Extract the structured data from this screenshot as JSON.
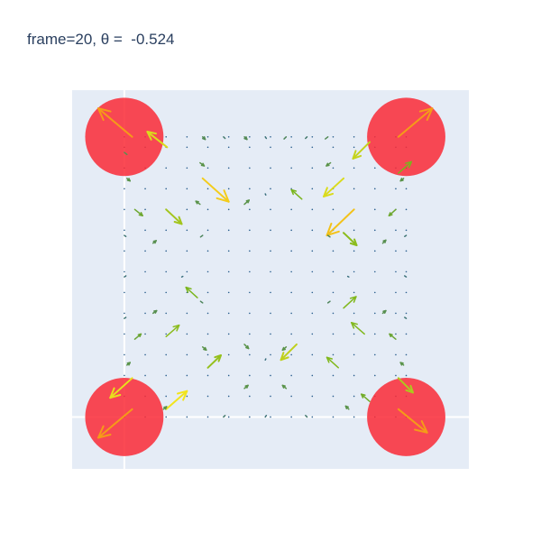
{
  "chart_data": {
    "type": "quiver",
    "title": "frame=20, θ =  -0.524",
    "frame": 20,
    "theta": -0.524,
    "xlim": [
      -1,
      6.6
    ],
    "ylim": [
      -1,
      6.3
    ],
    "grid": true,
    "gridlines": {
      "x": [
        0
      ],
      "y": [
        0
      ]
    },
    "colors": {
      "plot_bg": "#e5ecf6",
      "gridline": "#ffffff",
      "markers": "#fa2a36",
      "scale_low": "#2b5f8e",
      "scale_mid": "#7ab51d",
      "scale_high": "#f2e41c",
      "scale_top": "#f59b18"
    },
    "markers": [
      {
        "x": 0,
        "y": 5.4
      },
      {
        "x": 5.4,
        "y": 5.4
      },
      {
        "x": 0,
        "y": 0
      },
      {
        "x": 5.4,
        "y": 0
      }
    ],
    "vectors": [
      {
        "x": 0.15,
        "y": 5.4,
        "u": -0.65,
        "v": 0.55,
        "mag": 1.0
      },
      {
        "x": 5.25,
        "y": 5.4,
        "u": 0.65,
        "v": 0.55,
        "mag": 1.0
      },
      {
        "x": 0.15,
        "y": 0.15,
        "u": -0.65,
        "v": -0.55,
        "mag": 1.0
      },
      {
        "x": 5.25,
        "y": 0.15,
        "u": 0.55,
        "v": -0.45,
        "mag": 1.0
      },
      {
        "x": 0.82,
        "y": 5.2,
        "u": -0.38,
        "v": 0.3,
        "mag": 0.78
      },
      {
        "x": 4.7,
        "y": 5.3,
        "u": -0.32,
        "v": -0.32,
        "mag": 0.72
      },
      {
        "x": 0.15,
        "y": 0.75,
        "u": -0.42,
        "v": -0.38,
        "mag": 0.82
      },
      {
        "x": 5.25,
        "y": 0.75,
        "u": 0.28,
        "v": -0.28,
        "mag": 0.65
      },
      {
        "x": 5.25,
        "y": 4.7,
        "u": 0.25,
        "v": 0.22,
        "mag": 0.5
      },
      {
        "x": 0.8,
        "y": 0.15,
        "u": 0.4,
        "v": 0.35,
        "mag": 0.85
      },
      {
        "x": 1.5,
        "y": 4.6,
        "u": 0.5,
        "v": -0.45,
        "mag": 0.9
      },
      {
        "x": 4.2,
        "y": 4.6,
        "u": -0.38,
        "v": -0.35,
        "mag": 0.78
      },
      {
        "x": 4.4,
        "y": 4.0,
        "u": -0.52,
        "v": -0.5,
        "mag": 0.92
      },
      {
        "x": 0.8,
        "y": 4.0,
        "u": 0.3,
        "v": -0.28,
        "mag": 0.62
      },
      {
        "x": 4.2,
        "y": 3.55,
        "u": 0.25,
        "v": -0.24,
        "mag": 0.55
      },
      {
        "x": 3.4,
        "y": 4.2,
        "u": -0.2,
        "v": 0.18,
        "mag": 0.5
      },
      {
        "x": 1.6,
        "y": 0.95,
        "u": 0.25,
        "v": 0.24,
        "mag": 0.58
      },
      {
        "x": 1.4,
        "y": 2.3,
        "u": -0.22,
        "v": 0.2,
        "mag": 0.5
      },
      {
        "x": 0.8,
        "y": 1.55,
        "u": 0.25,
        "v": 0.22,
        "mag": 0.55
      },
      {
        "x": 4.2,
        "y": 2.1,
        "u": 0.24,
        "v": 0.22,
        "mag": 0.52
      },
      {
        "x": 4.6,
        "y": 1.6,
        "u": -0.25,
        "v": 0.22,
        "mag": 0.52
      },
      {
        "x": 3.3,
        "y": 1.4,
        "u": -0.3,
        "v": -0.3,
        "mag": 0.7
      },
      {
        "x": 4.1,
        "y": 0.95,
        "u": -0.22,
        "v": 0.2,
        "mag": 0.52
      },
      {
        "x": 4.7,
        "y": 0.3,
        "u": -0.16,
        "v": 0.14,
        "mag": 0.45
      },
      {
        "x": 0.2,
        "y": 4.0,
        "u": 0.15,
        "v": -0.12,
        "mag": 0.42
      },
      {
        "x": 5.2,
        "y": 4.0,
        "u": -0.13,
        "v": -0.12,
        "mag": 0.42
      },
      {
        "x": 0.2,
        "y": 1.5,
        "u": 0.12,
        "v": 0.1,
        "mag": 0.4
      },
      {
        "x": 5.2,
        "y": 1.5,
        "u": -0.12,
        "v": 0.1,
        "mag": 0.4
      },
      {
        "x": 1.45,
        "y": 4.9,
        "u": 0.08,
        "v": -0.06,
        "mag": 0.3
      },
      {
        "x": 3.95,
        "y": 4.9,
        "u": -0.08,
        "v": -0.06,
        "mag": 0.3
      },
      {
        "x": 2.3,
        "y": 4.1,
        "u": 0.09,
        "v": 0.08,
        "mag": 0.3
      },
      {
        "x": 1.45,
        "y": 4.1,
        "u": -0.08,
        "v": 0.06,
        "mag": 0.3
      },
      {
        "x": 4.95,
        "y": 3.35,
        "u": 0.06,
        "v": 0.06,
        "mag": 0.28
      },
      {
        "x": 0.55,
        "y": 3.35,
        "u": 0.06,
        "v": 0.05,
        "mag": 0.28
      },
      {
        "x": 4.95,
        "y": 2.0,
        "u": 0.06,
        "v": 0.05,
        "mag": 0.28
      },
      {
        "x": 0.55,
        "y": 2.0,
        "u": 0.07,
        "v": 0.05,
        "mag": 0.28
      },
      {
        "x": 1.5,
        "y": 1.35,
        "u": 0.07,
        "v": -0.06,
        "mag": 0.3
      },
      {
        "x": 2.3,
        "y": 1.4,
        "u": 0.08,
        "v": -0.08,
        "mag": 0.3
      },
      {
        "x": 3.1,
        "y": 1.35,
        "u": -0.07,
        "v": -0.06,
        "mag": 0.3
      },
      {
        "x": 2.3,
        "y": 0.55,
        "u": 0.07,
        "v": 0.06,
        "mag": 0.3
      },
      {
        "x": 3.1,
        "y": 0.55,
        "u": -0.07,
        "v": 0.06,
        "mag": 0.3
      },
      {
        "x": 0.75,
        "y": 0.15,
        "u": 0.06,
        "v": 0.05,
        "mag": 0.3
      },
      {
        "x": 4.3,
        "y": 0.15,
        "u": -0.06,
        "v": 0.06,
        "mag": 0.3
      },
      {
        "x": 2.3,
        "y": 5.4,
        "u": 0.05,
        "v": -0.05,
        "mag": 0.25
      },
      {
        "x": 3.1,
        "y": 5.4,
        "u": -0.04,
        "v": -0.04,
        "mag": 0.22
      },
      {
        "x": 1.5,
        "y": 5.4,
        "u": 0.05,
        "v": -0.05,
        "mag": 0.25
      },
      {
        "x": 3.9,
        "y": 5.4,
        "u": -0.05,
        "v": -0.04,
        "mag": 0.25
      },
      {
        "x": 1.5,
        "y": 3.5,
        "u": -0.04,
        "v": -0.03,
        "mag": 0.22
      },
      {
        "x": 3.9,
        "y": 3.5,
        "u": 0.04,
        "v": -0.03,
        "mag": 0.22
      },
      {
        "x": 1.5,
        "y": 2.2,
        "u": -0.04,
        "v": 0.03,
        "mag": 0.22
      },
      {
        "x": 3.9,
        "y": 2.2,
        "u": 0.04,
        "v": 0.03,
        "mag": 0.22
      },
      {
        "x": 0.05,
        "y": 4.6,
        "u": 0.06,
        "v": -0.05,
        "mag": 0.3
      },
      {
        "x": 5.35,
        "y": 4.6,
        "u": -0.06,
        "v": -0.05,
        "mag": 0.3
      },
      {
        "x": 0.05,
        "y": 1.0,
        "u": 0.06,
        "v": 0.05,
        "mag": 0.3
      },
      {
        "x": 5.35,
        "y": 1.0,
        "u": -0.06,
        "v": 0.05,
        "mag": 0.3
      },
      {
        "x": 0.0,
        "y": 5.1,
        "u": 0.05,
        "v": -0.04,
        "mag": 0.28
      },
      {
        "x": 1.9,
        "y": 5.4,
        "u": 0.03,
        "v": -0.03,
        "mag": 0.15
      },
      {
        "x": 2.7,
        "y": 5.4,
        "u": 0.02,
        "v": -0.03,
        "mag": 0.1
      },
      {
        "x": 3.5,
        "y": 5.4,
        "u": -0.03,
        "v": -0.03,
        "mag": 0.15
      },
      {
        "x": 1.9,
        "y": 0.0,
        "u": 0.03,
        "v": 0.03,
        "mag": 0.15
      },
      {
        "x": 2.7,
        "y": 0.0,
        "u": 0.02,
        "v": 0.03,
        "mag": 0.1
      },
      {
        "x": 3.5,
        "y": 0.0,
        "u": -0.03,
        "v": 0.03,
        "mag": 0.15
      },
      {
        "x": 0.0,
        "y": 2.7,
        "u": 0.03,
        "v": 0.02,
        "mag": 0.1
      },
      {
        "x": 5.4,
        "y": 2.7,
        "u": -0.03,
        "v": 0.02,
        "mag": 0.1
      },
      {
        "x": 0.0,
        "y": 3.5,
        "u": 0.03,
        "v": -0.02,
        "mag": 0.12
      },
      {
        "x": 5.4,
        "y": 3.5,
        "u": -0.03,
        "v": -0.02,
        "mag": 0.12
      },
      {
        "x": 0.0,
        "y": 1.9,
        "u": 0.03,
        "v": 0.02,
        "mag": 0.12
      },
      {
        "x": 5.4,
        "y": 1.9,
        "u": -0.03,
        "v": 0.02,
        "mag": 0.12
      },
      {
        "x": 2.7,
        "y": 4.3,
        "u": 0.01,
        "v": -0.02,
        "mag": 0.08
      },
      {
        "x": 2.7,
        "y": 1.1,
        "u": 0.01,
        "v": 0.02,
        "mag": 0.08
      },
      {
        "x": 1.1,
        "y": 2.7,
        "u": 0.02,
        "v": 0.01,
        "mag": 0.08
      },
      {
        "x": 4.3,
        "y": 2.7,
        "u": -0.02,
        "v": 0.01,
        "mag": 0.08
      }
    ],
    "dots": {
      "x": [
        0,
        0.4,
        0.8,
        1.2,
        1.6,
        2.0,
        2.4,
        2.8,
        3.2,
        3.6,
        4.0,
        4.4,
        4.8,
        5.2,
        5.4
      ],
      "y": [
        0,
        0.4,
        0.8,
        1.2,
        1.6,
        2.0,
        2.4,
        2.8,
        3.2,
        3.6,
        4.0,
        4.4,
        4.8,
        5.2,
        5.4
      ]
    }
  }
}
